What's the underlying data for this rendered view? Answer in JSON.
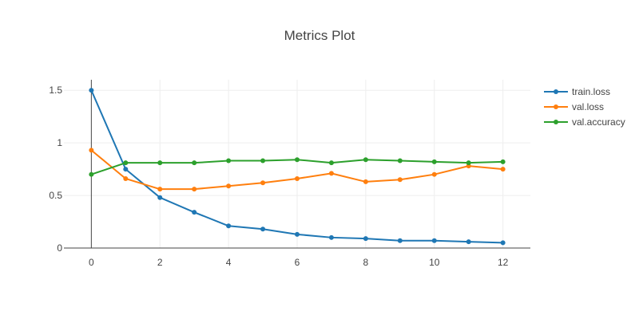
{
  "chart_data": {
    "type": "line",
    "title": "Metrics Plot",
    "xlabel": "",
    "ylabel": "",
    "xlim": [
      -0.8,
      12.8
    ],
    "ylim": [
      0,
      1.6
    ],
    "xticks": [
      0,
      2,
      4,
      6,
      8,
      10,
      12
    ],
    "yticks": [
      0,
      0.5,
      1,
      1.5
    ],
    "xtick_labels": [
      "0",
      "2",
      "4",
      "6",
      "8",
      "10",
      "12"
    ],
    "ytick_labels": [
      "0",
      "0.5",
      "1",
      "1.5"
    ],
    "grid": true,
    "legend_position": "top-right",
    "x": [
      0,
      1,
      2,
      3,
      4,
      5,
      6,
      7,
      8,
      9,
      10,
      11,
      12
    ],
    "series": [
      {
        "name": "train.loss",
        "color": "#1f77b4",
        "values": [
          1.5,
          0.75,
          0.48,
          0.34,
          0.21,
          0.18,
          0.13,
          0.1,
          0.09,
          0.07,
          0.07,
          0.06,
          0.05
        ]
      },
      {
        "name": "val.loss",
        "color": "#ff7f0e",
        "values": [
          0.93,
          0.66,
          0.56,
          0.56,
          0.59,
          0.62,
          0.66,
          0.71,
          0.63,
          0.65,
          0.7,
          0.78,
          0.75
        ]
      },
      {
        "name": "val.accuracy",
        "color": "#2ca02c",
        "values": [
          0.7,
          0.81,
          0.81,
          0.81,
          0.83,
          0.83,
          0.84,
          0.81,
          0.84,
          0.83,
          0.82,
          0.81,
          0.82
        ]
      }
    ]
  }
}
